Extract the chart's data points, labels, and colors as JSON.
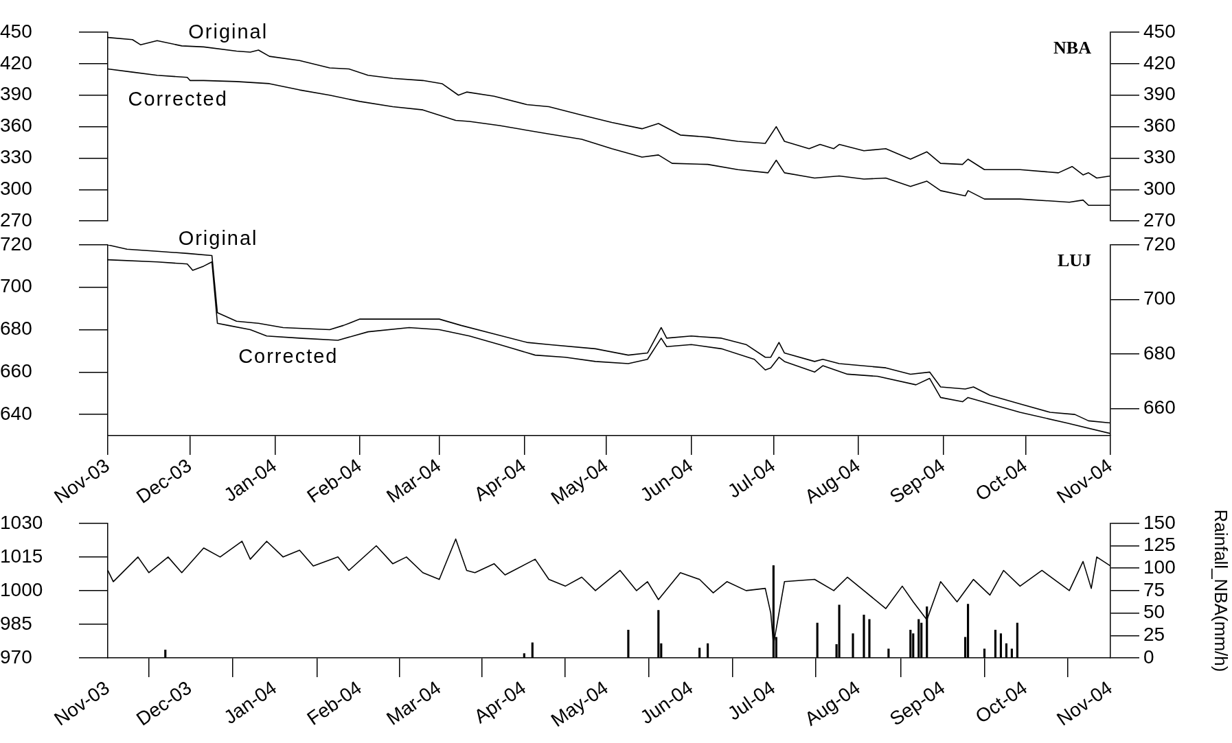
{
  "chart_data": [
    {
      "type": "line",
      "xlim": [
        "2003-11-01",
        "2004-11-01"
      ],
      "ylim": [
        270,
        450
      ],
      "yticks": [
        270,
        300,
        330,
        360,
        390,
        420,
        450
      ],
      "y2lim": [
        270,
        450
      ],
      "y2ticks": [
        270,
        300,
        330,
        360,
        390,
        420,
        450
      ],
      "tick_labels": "y",
      "grid": false,
      "marker": "none",
      "line_style": "solid",
      "annotations": [
        "NBA"
      ],
      "series": [
        {
          "name": "Original",
          "color": "#000000",
          "x": [
            "2003-11-01",
            "2003-11-10",
            "2003-11-13",
            "2003-11-19",
            "2003-11-28",
            "2003-12-06",
            "2003-12-18",
            "2003-12-23",
            "2003-12-26",
            "2003-12-30",
            "2004-01-10",
            "2004-01-21",
            "2004-01-28",
            "2004-02-04",
            "2004-02-13",
            "2004-02-24",
            "2004-03-02",
            "2004-03-08",
            "2004-03-11",
            "2004-03-21",
            "2004-04-02",
            "2004-04-10",
            "2004-04-22",
            "2004-05-03",
            "2004-05-14",
            "2004-05-20",
            "2004-05-28",
            "2004-06-07",
            "2004-06-18",
            "2004-06-28",
            "2004-07-02",
            "2004-07-05",
            "2004-07-14",
            "2004-07-18",
            "2004-07-23",
            "2004-07-25",
            "2004-08-03",
            "2004-08-11",
            "2004-08-20",
            "2004-08-26",
            "2004-08-31",
            "2004-09-08",
            "2004-09-10",
            "2004-09-16",
            "2004-09-29",
            "2004-10-13",
            "2004-10-18",
            "2004-10-22",
            "2004-10-24",
            "2004-10-27",
            "2004-11-01"
          ],
          "values": [
            445,
            443,
            438,
            442,
            437,
            436,
            432,
            431,
            433,
            427,
            423,
            416,
            415,
            409,
            406,
            404,
            401,
            390,
            393,
            389,
            381,
            379,
            371,
            364,
            358,
            363,
            352,
            350,
            346,
            344,
            360,
            346,
            339,
            343,
            339,
            343,
            337,
            339,
            329,
            336,
            325,
            324,
            329,
            319,
            319,
            316,
            322,
            314,
            316,
            311,
            313
          ]
        },
        {
          "name": "Corrected",
          "color": "#000000",
          "x": [
            "2003-11-01",
            "2003-11-10",
            "2003-11-19",
            "2003-11-30",
            "2003-12-01",
            "2003-12-06",
            "2003-12-18",
            "2003-12-30",
            "2004-01-10",
            "2004-01-21",
            "2004-02-01",
            "2004-02-13",
            "2004-02-24",
            "2004-03-07",
            "2004-03-12",
            "2004-03-23",
            "2004-04-10",
            "2004-04-22",
            "2004-05-03",
            "2004-05-14",
            "2004-05-20",
            "2004-05-25",
            "2004-06-07",
            "2004-06-18",
            "2004-06-29",
            "2004-07-02",
            "2004-07-05",
            "2004-07-16",
            "2004-07-25",
            "2004-08-03",
            "2004-08-11",
            "2004-08-20",
            "2004-08-26",
            "2004-08-31",
            "2004-09-09",
            "2004-09-10",
            "2004-09-16",
            "2004-09-29",
            "2004-10-17",
            "2004-10-22",
            "2004-10-24",
            "2004-11-01"
          ],
          "values": [
            415,
            412,
            409,
            407,
            404,
            404,
            403,
            401,
            395,
            390,
            384,
            379,
            376,
            366,
            365,
            361,
            353,
            348,
            339,
            331,
            333,
            325,
            324,
            319,
            316,
            328,
            316,
            311,
            313,
            310,
            311,
            303,
            308,
            299,
            294,
            299,
            291,
            291,
            288,
            290,
            285,
            285
          ]
        }
      ]
    },
    {
      "type": "line",
      "xlim": [
        "2003-11-01",
        "2004-11-01"
      ],
      "xticks": [
        {
          "value": "2003-11-01",
          "label": "Nov-03"
        },
        {
          "value": "2003-12-01",
          "label": "Dec-03"
        },
        {
          "value": "2004-01-01",
          "label": "Jan-04"
        },
        {
          "value": "2004-02-01",
          "label": "Feb-04"
        },
        {
          "value": "2004-03-01",
          "label": "Mar-04"
        },
        {
          "value": "2004-04-01",
          "label": "Apr-04"
        },
        {
          "value": "2004-05-01",
          "label": "May-04"
        },
        {
          "value": "2004-06-01",
          "label": "Jun-04"
        },
        {
          "value": "2004-07-01",
          "label": "Jul-04"
        },
        {
          "value": "2004-08-01",
          "label": "Aug-04"
        },
        {
          "value": "2004-09-01",
          "label": "Sep-04"
        },
        {
          "value": "2004-10-01",
          "label": "Oct-04"
        },
        {
          "value": "2004-11-01",
          "label": "Nov-04"
        }
      ],
      "ylim": [
        630,
        720
      ],
      "yticks": [
        640,
        660,
        680,
        700,
        720
      ],
      "y2lim": [
        650,
        720
      ],
      "y2ticks": [
        660,
        680,
        700,
        720
      ],
      "grid": false,
      "marker": "none",
      "line_style": "solid",
      "annotations": [
        "LUJ"
      ],
      "series": [
        {
          "name": "Original",
          "color": "#000000",
          "x": [
            "2003-11-01",
            "2003-11-08",
            "2003-11-19",
            "2003-11-30",
            "2003-12-09",
            "2003-12-11",
            "2003-12-18",
            "2003-12-26",
            "2004-01-04",
            "2004-01-21",
            "2004-01-26",
            "2004-02-01",
            "2004-02-13",
            "2004-03-01",
            "2004-03-09",
            "2004-03-21",
            "2004-04-02",
            "2004-04-10",
            "2004-04-27",
            "2004-05-09",
            "2004-05-16",
            "2004-05-21",
            "2004-05-23",
            "2004-06-01",
            "2004-06-12",
            "2004-06-21",
            "2004-06-28",
            "2004-06-30",
            "2004-07-03",
            "2004-07-05",
            "2004-07-16",
            "2004-07-19",
            "2004-07-25",
            "2004-08-11",
            "2004-08-20",
            "2004-08-27",
            "2004-08-31",
            "2004-09-09",
            "2004-09-12",
            "2004-09-18",
            "2004-09-29",
            "2004-10-10",
            "2004-10-19",
            "2004-10-24",
            "2004-11-01"
          ],
          "values": [
            720,
            718,
            717,
            716,
            715,
            688,
            684,
            683,
            681,
            680,
            682,
            685,
            685,
            685,
            682,
            678,
            674,
            673,
            671,
            668,
            669,
            681,
            676,
            677,
            676,
            673,
            667,
            667,
            674,
            669,
            665,
            666,
            664,
            662,
            659,
            660,
            653,
            652,
            653,
            649,
            645,
            641,
            640,
            637,
            636
          ]
        },
        {
          "name": "Corrected",
          "color": "#000000",
          "x": [
            "2003-11-01",
            "2003-11-19",
            "2003-11-30",
            "2003-12-02",
            "2003-12-06",
            "2003-12-09",
            "2003-12-11",
            "2003-12-15",
            "2003-12-23",
            "2003-12-29",
            "2004-01-10",
            "2004-01-24",
            "2004-02-04",
            "2004-02-19",
            "2004-03-01",
            "2004-03-12",
            "2004-03-23",
            "2004-04-05",
            "2004-04-16",
            "2004-04-27",
            "2004-05-09",
            "2004-05-16",
            "2004-05-21",
            "2004-05-23",
            "2004-06-01",
            "2004-06-12",
            "2004-06-24",
            "2004-06-28",
            "2004-06-30",
            "2004-07-03",
            "2004-07-05",
            "2004-07-16",
            "2004-07-19",
            "2004-07-28",
            "2004-08-08",
            "2004-08-22",
            "2004-08-27",
            "2004-08-31",
            "2004-09-08",
            "2004-09-10",
            "2004-09-29",
            "2004-10-16",
            "2004-11-01"
          ],
          "values": [
            713,
            712,
            711,
            708,
            710,
            712,
            683,
            682,
            680,
            677,
            676,
            675,
            679,
            681,
            680,
            677,
            673,
            668,
            667,
            665,
            664,
            666,
            676,
            672,
            673,
            671,
            666,
            661,
            662,
            667,
            665,
            660,
            663,
            659,
            658,
            654,
            657,
            648,
            646,
            648,
            641,
            636,
            631
          ]
        }
      ]
    },
    {
      "type": "line",
      "xlim": [
        "2003-11-01",
        "2004-11-01"
      ],
      "xticks": [
        {
          "value": "2003-11-01",
          "label": "Nov-03"
        },
        {
          "value": "2003-12-01",
          "label": "Dec-03"
        },
        {
          "value": "2004-01-01",
          "label": "Jan-04"
        },
        {
          "value": "2004-02-01",
          "label": "Feb-04"
        },
        {
          "value": "2004-03-01",
          "label": "Mar-04"
        },
        {
          "value": "2004-04-01",
          "label": "Apr-04"
        },
        {
          "value": "2004-05-01",
          "label": "May-04"
        },
        {
          "value": "2004-06-01",
          "label": "Jun-04"
        },
        {
          "value": "2004-07-01",
          "label": "Jul-04"
        },
        {
          "value": "2004-08-01",
          "label": "Aug-04"
        },
        {
          "value": "2004-09-01",
          "label": "Sep-04"
        },
        {
          "value": "2004-10-01",
          "label": "Oct-04"
        },
        {
          "value": "2004-11-01",
          "label": "Nov-04"
        }
      ],
      "ylim": [
        970,
        1030
      ],
      "yticks": [
        970,
        985,
        1000,
        1015,
        1030
      ],
      "y2lim": [
        0,
        150
      ],
      "y2ticks": [
        0,
        25,
        50,
        75,
        100,
        125,
        150
      ],
      "y2label": "Rainfall_NBA(mm/h)",
      "grid": false,
      "marker": "none",
      "line_style": "solid",
      "series": [
        {
          "color": "#000000",
          "x": [
            "2003-11-01",
            "2003-11-03",
            "2003-11-12",
            "2003-11-16",
            "2003-11-23",
            "2003-11-28",
            "2003-12-06",
            "2003-12-12",
            "2003-12-20",
            "2003-12-23",
            "2003-12-29",
            "2004-01-04",
            "2004-01-10",
            "2004-01-15",
            "2004-01-24",
            "2004-01-28",
            "2004-02-07",
            "2004-02-13",
            "2004-02-18",
            "2004-02-24",
            "2004-03-01",
            "2004-03-07",
            "2004-03-11",
            "2004-03-14",
            "2004-03-21",
            "2004-03-25",
            "2004-04-05",
            "2004-04-10",
            "2004-04-16",
            "2004-04-22",
            "2004-04-27",
            "2004-05-06",
            "2004-05-12",
            "2004-05-16",
            "2004-05-20",
            "2004-05-28",
            "2004-06-04",
            "2004-06-09",
            "2004-06-14",
            "2004-06-21",
            "2004-06-28",
            "2004-06-30",
            "2004-07-01",
            "2004-07-05",
            "2004-07-16",
            "2004-07-23",
            "2004-07-28",
            "2004-08-03",
            "2004-08-11",
            "2004-08-17",
            "2004-08-21",
            "2004-08-26",
            "2004-08-31",
            "2004-09-06",
            "2004-09-12",
            "2004-09-18",
            "2004-09-23",
            "2004-09-29",
            "2004-10-07",
            "2004-10-17",
            "2004-10-22",
            "2004-10-25",
            "2004-10-27",
            "2004-11-01"
          ],
          "values": [
            1009,
            1004,
            1015,
            1008,
            1015,
            1008,
            1019,
            1015,
            1022,
            1014,
            1022,
            1015,
            1018,
            1011,
            1015,
            1009,
            1020,
            1012,
            1015,
            1008,
            1005,
            1023,
            1009,
            1008,
            1012,
            1007,
            1014,
            1005,
            1002,
            1006,
            1000,
            1009,
            1000,
            1004,
            996,
            1008,
            1005,
            999,
            1004,
            1000,
            1001,
            990,
            976,
            1004,
            1005,
            1000,
            1006,
            1000,
            992,
            1002,
            995,
            987,
            1004,
            995,
            1005,
            998,
            1009,
            1002,
            1009,
            1000,
            1013,
            1001,
            1015,
            1011
          ]
        },
        {
          "type": "bar",
          "axis": "y2",
          "color": "#000000",
          "x": [
            "2003-11-22",
            "2004-04-01",
            "2004-04-04",
            "2004-05-09",
            "2004-05-20",
            "2004-05-21",
            "2004-06-04",
            "2004-06-07",
            "2004-07-01",
            "2004-07-02",
            "2004-07-17",
            "2004-07-24",
            "2004-07-25",
            "2004-07-30",
            "2004-08-03",
            "2004-08-05",
            "2004-08-12",
            "2004-08-20",
            "2004-08-21",
            "2004-08-23",
            "2004-08-24",
            "2004-08-26",
            "2004-09-09",
            "2004-09-10",
            "2004-09-16",
            "2004-09-20",
            "2004-09-22",
            "2004-09-24",
            "2004-09-26",
            "2004-09-28"
          ],
          "values": [
            9,
            5,
            17,
            31,
            53,
            16,
            11,
            16,
            103,
            23,
            39,
            15,
            59,
            27,
            48,
            43,
            10,
            31,
            27,
            43,
            39,
            57,
            23,
            60,
            10,
            31,
            27,
            16,
            10,
            39
          ]
        }
      ]
    }
  ]
}
